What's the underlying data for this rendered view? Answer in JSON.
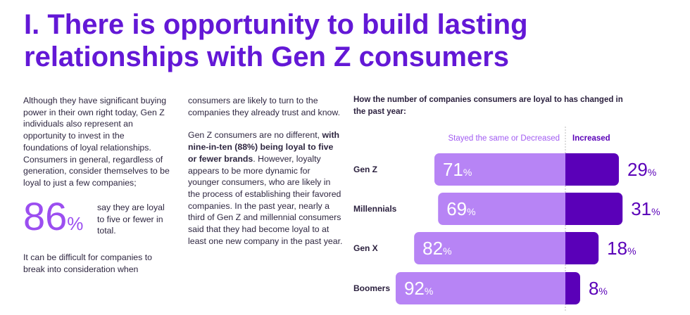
{
  "title": "I. There is opportunity to build lasting relationships with Gen Z consumers",
  "text": {
    "col1a": "Although they have significant buying power in their own right today, Gen Z individuals also represent an opportunity to invest in the foundations of loyal relationships. Consumers in general, regardless of generation, consider themselves to be loyal to just a few companies;",
    "stat_value": "86",
    "stat_unit": "%",
    "stat_text": "say they are loyal to five or fewer in total.",
    "col1b": "It can be difficult for companies to break into consideration when",
    "col2a": "consumers are likely to turn to the companies they already trust and know.",
    "col2b_pre": "Gen Z consumers are no different, ",
    "col2b_bold": "with nine-in-ten (88%) being loyal to five or fewer brands",
    "col2b_post": ". However, loyalty appears to be more dynamic for younger consumers, who are likely in the process of establishing their favored companies. In the past year, nearly a third of Gen Z and millennial consumers said that they had become loyal to at least one new company in the past year."
  },
  "chart_data": {
    "type": "bar",
    "title": "How the number of companies consumers are loyal to has changed in the past year:",
    "categories": [
      "Gen Z",
      "Millennials",
      "Gen X",
      "Boomers"
    ],
    "series": [
      {
        "name": "Stayed the same or Decreased",
        "values": [
          71,
          69,
          82,
          92
        ],
        "color": "#b784f5"
      },
      {
        "name": "Increased",
        "values": [
          29,
          31,
          18,
          8
        ],
        "color": "#5a00b8"
      }
    ],
    "unit": "%"
  }
}
